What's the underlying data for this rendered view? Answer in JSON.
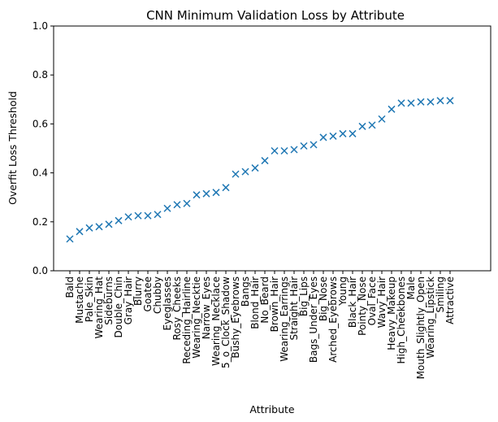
{
  "chart_data": {
    "type": "scatter",
    "title": "CNN Minimum Validation Loss by Attribute",
    "xlabel": "Attribute",
    "ylabel": "Overfit Loss Threshold",
    "ylim": [
      0.0,
      1.0
    ],
    "yticks": [
      "0.0",
      "0.2",
      "0.4",
      "0.6",
      "0.8",
      "1.0"
    ],
    "marker": "x",
    "color": "#1f77b4",
    "grid": false,
    "categories": [
      "Bald",
      "Mustache",
      "Pale_Skin",
      "Wearing_Hat",
      "Sideburns",
      "Double_Chin",
      "Gray_Hair",
      "Blurry",
      "Goatee",
      "Chubby",
      "Eyeglasses",
      "Rosy_Cheeks",
      "Receding_Hairline",
      "Wearing_Necktie",
      "Narrow_Eyes",
      "Wearing_Necklace",
      "5_o_Clock_Shadow",
      "Bushy_Eyebrows",
      "Bangs",
      "Blond_Hair",
      "No_Beard",
      "Brown_Hair",
      "Wearing_Earrings",
      "Straight_Hair",
      "Big_Lips",
      "Bags_Under_Eyes",
      "Big_Nose",
      "Arched_Eyebrows",
      "Young",
      "Black_Hair",
      "Pointy_Nose",
      "Oval_Face",
      "Wavy_Hair",
      "Heavy_Makeup",
      "High_Cheekbones",
      "Male",
      "Mouth_Slightly_Open",
      "Wearing_Lipstick",
      "Smiling",
      "Attractive"
    ],
    "values": [
      0.13,
      0.16,
      0.175,
      0.18,
      0.19,
      0.205,
      0.22,
      0.225,
      0.225,
      0.23,
      0.255,
      0.27,
      0.275,
      0.31,
      0.315,
      0.32,
      0.34,
      0.395,
      0.405,
      0.42,
      0.45,
      0.49,
      0.49,
      0.495,
      0.51,
      0.515,
      0.545,
      0.55,
      0.56,
      0.56,
      0.59,
      0.595,
      0.62,
      0.66,
      0.685,
      0.685,
      0.69,
      0.69,
      0.695,
      0.695
    ]
  }
}
